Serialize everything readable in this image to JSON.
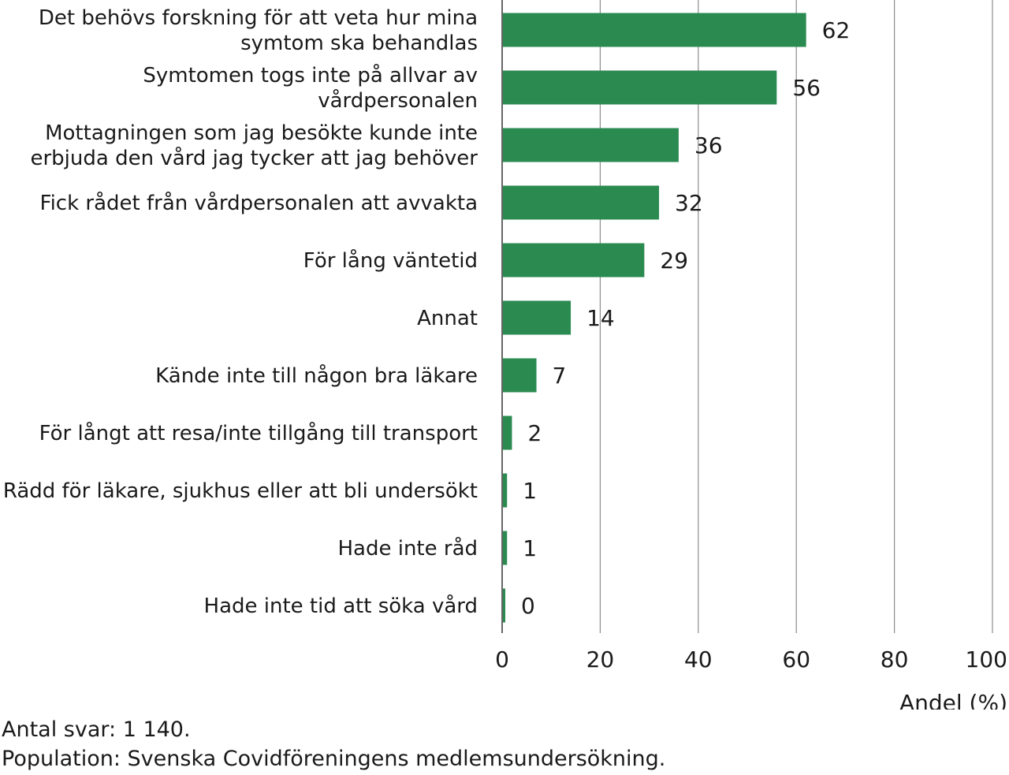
{
  "chart_data": {
    "type": "bar",
    "orientation": "horizontal",
    "categories": [
      [
        "Det behövs forskning för att veta hur mina",
        "symtom ska behandlas"
      ],
      [
        "Symtomen togs inte på allvar av",
        "vårdpersonalen"
      ],
      [
        "Mottagningen som jag besökte kunde inte",
        "erbjuda den vård jag tycker att jag behöver"
      ],
      [
        "Fick rådet från vårdpersonalen att avvakta"
      ],
      [
        "För lång väntetid"
      ],
      [
        "Annat"
      ],
      [
        "Kände inte till någon bra läkare"
      ],
      [
        "För långt att resa/inte tillgång till transport"
      ],
      [
        "Rädd för läkare, sjukhus eller att bli undersökt"
      ],
      [
        "Hade inte råd"
      ],
      [
        "Hade inte tid att söka vård"
      ]
    ],
    "values": [
      62,
      56,
      36,
      32,
      29,
      14,
      7,
      2,
      1,
      1,
      0
    ],
    "value_labels": [
      "62",
      "56",
      "36",
      "32",
      "29",
      "14",
      "7",
      "2",
      "1",
      "1",
      "0"
    ],
    "xlim": [
      0,
      100
    ],
    "xticks": [
      0,
      20,
      40,
      60,
      80,
      100
    ],
    "xlabel": "Andel (%)",
    "grid": "vertical",
    "legend": "none",
    "bar_color": "#2a8a50",
    "grid_color": "#8c8c8c",
    "axis_color": "#666666"
  },
  "footnotes": {
    "line1": "Antal svar: 1 140.",
    "line2": "Population: Svenska Covidföreningens medlemsundersökning."
  }
}
